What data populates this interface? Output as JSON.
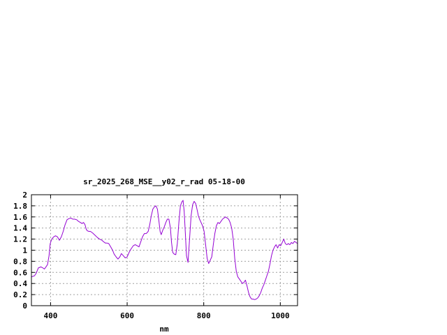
{
  "chart_data": {
    "type": "line",
    "title": "sr_2025_268_MSE__y02_r_rad 05-18-00",
    "xlabel": "nm",
    "ylabel": "",
    "xlim": [
      350,
      1045
    ],
    "ylim": [
      0,
      2
    ],
    "x_ticks": [
      400,
      600,
      800,
      1000
    ],
    "y_ticks": [
      0,
      0.2,
      0.4,
      0.6,
      0.8,
      1,
      1.2,
      1.4,
      1.6,
      1.8,
      2
    ],
    "x_tick_labels": [
      "400",
      "600",
      "800",
      "1000"
    ],
    "y_tick_labels": [
      "0",
      "0.2",
      "0.4",
      "0.6",
      "0.8",
      "1",
      "1.2",
      "1.4",
      "1.6",
      "1.8",
      "2"
    ],
    "grid": true,
    "legend": "none",
    "series": [
      {
        "color": "#9400d3",
        "x": [
          350,
          358,
          362,
          368,
          375,
          380,
          384,
          388,
          392,
          396,
          399,
          403,
          408,
          413,
          418,
          423,
          428,
          433,
          438,
          443,
          448,
          453,
          458,
          463,
          468,
          473,
          478,
          482,
          486,
          490,
          493,
          496,
          500,
          504,
          510,
          516,
          522,
          528,
          534,
          539,
          543,
          547,
          552,
          557,
          562,
          566,
          571,
          576,
          581,
          585,
          590,
          595,
          600,
          605,
          610,
          616,
          621,
          626,
          631,
          635,
          640,
          645,
          650,
          655,
          659,
          663,
          667,
          671,
          675,
          679,
          683,
          686,
          689,
          693,
          697,
          701,
          705,
          709,
          713,
          716,
          719,
          723,
          727,
          731,
          735,
          739,
          743,
          746,
          749,
          752,
          755,
          759,
          763,
          767,
          771,
          775,
          779,
          783,
          786,
          789,
          793,
          797,
          801,
          805,
          809,
          813,
          817,
          821,
          825,
          829,
          833,
          837,
          841,
          845,
          849,
          853,
          857,
          861,
          865,
          869,
          873,
          877,
          881,
          885,
          889,
          893,
          897,
          901,
          905,
          909,
          913,
          917,
          921,
          925,
          929,
          933,
          937,
          941,
          945,
          949,
          953,
          957,
          961,
          965,
          969,
          973,
          977,
          981,
          985,
          989,
          993,
          997,
          1001,
          1005,
          1009,
          1013,
          1017,
          1021,
          1025,
          1029,
          1033,
          1037,
          1041,
          1045
        ],
        "y": [
          0.52,
          0.54,
          0.58,
          0.68,
          0.7,
          0.68,
          0.66,
          0.7,
          0.74,
          0.9,
          1.12,
          1.2,
          1.24,
          1.26,
          1.24,
          1.18,
          1.24,
          1.34,
          1.46,
          1.55,
          1.57,
          1.58,
          1.56,
          1.56,
          1.55,
          1.52,
          1.5,
          1.48,
          1.5,
          1.46,
          1.38,
          1.35,
          1.34,
          1.34,
          1.31,
          1.27,
          1.23,
          1.2,
          1.18,
          1.15,
          1.13,
          1.13,
          1.12,
          1.06,
          1.0,
          0.93,
          0.88,
          0.84,
          0.88,
          0.94,
          0.9,
          0.86,
          0.88,
          0.96,
          1.02,
          1.08,
          1.1,
          1.08,
          1.06,
          1.14,
          1.24,
          1.3,
          1.3,
          1.34,
          1.46,
          1.62,
          1.74,
          1.78,
          1.8,
          1.74,
          1.52,
          1.34,
          1.28,
          1.36,
          1.42,
          1.5,
          1.56,
          1.56,
          1.4,
          1.14,
          0.96,
          0.93,
          0.92,
          1.12,
          1.5,
          1.8,
          1.87,
          1.9,
          1.7,
          1.3,
          0.9,
          0.78,
          1.2,
          1.62,
          1.82,
          1.88,
          1.84,
          1.72,
          1.62,
          1.56,
          1.5,
          1.44,
          1.34,
          1.1,
          0.85,
          0.76,
          0.82,
          0.88,
          1.1,
          1.3,
          1.44,
          1.5,
          1.48,
          1.52,
          1.56,
          1.58,
          1.6,
          1.58,
          1.56,
          1.5,
          1.4,
          1.2,
          0.85,
          0.62,
          0.52,
          0.48,
          0.44,
          0.4,
          0.42,
          0.46,
          0.36,
          0.24,
          0.16,
          0.12,
          0.12,
          0.11,
          0.12,
          0.14,
          0.18,
          0.24,
          0.32,
          0.38,
          0.46,
          0.54,
          0.62,
          0.75,
          0.9,
          1.0,
          1.06,
          1.1,
          1.04,
          1.1,
          1.08,
          1.14,
          1.2,
          1.12,
          1.1,
          1.12,
          1.1,
          1.14,
          1.12,
          1.16,
          1.14,
          1.12
        ]
      }
    ]
  }
}
